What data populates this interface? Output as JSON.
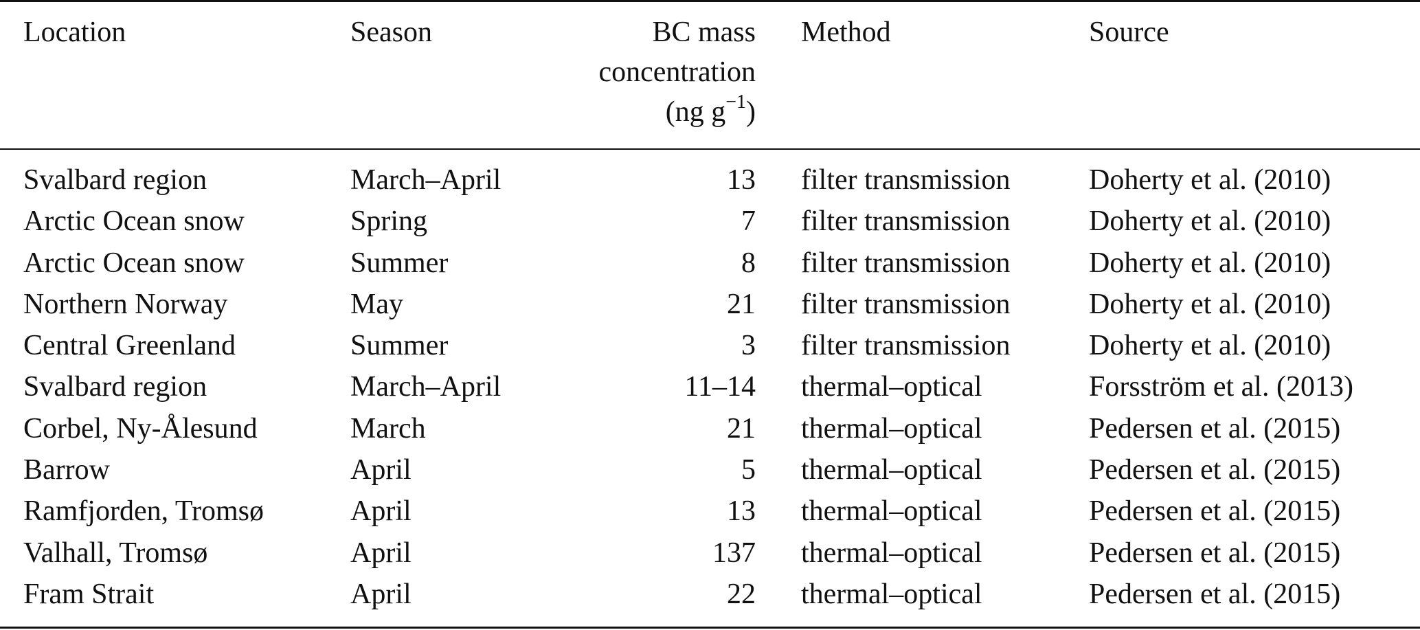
{
  "table": {
    "headers": {
      "location": "Location",
      "season": "Season",
      "bc_line1": "BC mass",
      "bc_line2": "concentration",
      "bc_unit_open": "(ng g",
      "bc_unit_sup": "−1",
      "bc_unit_close": ")",
      "method": "Method",
      "source": "Source"
    },
    "rows": [
      {
        "location": "Svalbard region",
        "season": "March–April",
        "bc": "13",
        "method": "filter transmission",
        "source": "Doherty et al. (2010)"
      },
      {
        "location": "Arctic Ocean snow",
        "season": "Spring",
        "bc": "7",
        "method": "filter transmission",
        "source": "Doherty et al. (2010)"
      },
      {
        "location": "Arctic Ocean snow",
        "season": "Summer",
        "bc": "8",
        "method": "filter transmission",
        "source": "Doherty et al. (2010)"
      },
      {
        "location": "Northern Norway",
        "season": "May",
        "bc": "21",
        "method": "filter transmission",
        "source": "Doherty et al. (2010)"
      },
      {
        "location": "Central Greenland",
        "season": "Summer",
        "bc": "3",
        "method": "filter transmission",
        "source": "Doherty et al. (2010)"
      },
      {
        "location": "Svalbard region",
        "season": "March–April",
        "bc": "11–14",
        "method": "thermal–optical",
        "source": "Forsström et al. (2013)"
      },
      {
        "location": "Corbel, Ny-Ålesund",
        "season": "March",
        "bc": "21",
        "method": "thermal–optical",
        "source": "Pedersen et al. (2015)"
      },
      {
        "location": "Barrow",
        "season": "April",
        "bc": "5",
        "method": "thermal–optical",
        "source": "Pedersen et al. (2015)"
      },
      {
        "location": "Ramfjorden, Tromsø",
        "season": "April",
        "bc": "13",
        "method": "thermal–optical",
        "source": "Pedersen et al. (2015)"
      },
      {
        "location": "Valhall, Tromsø",
        "season": "April",
        "bc": "137",
        "method": "thermal–optical",
        "source": "Pedersen et al. (2015)"
      },
      {
        "location": "Fram Strait",
        "season": "April",
        "bc": "22",
        "method": "thermal–optical",
        "source": "Pedersen et al. (2015)"
      }
    ]
  }
}
